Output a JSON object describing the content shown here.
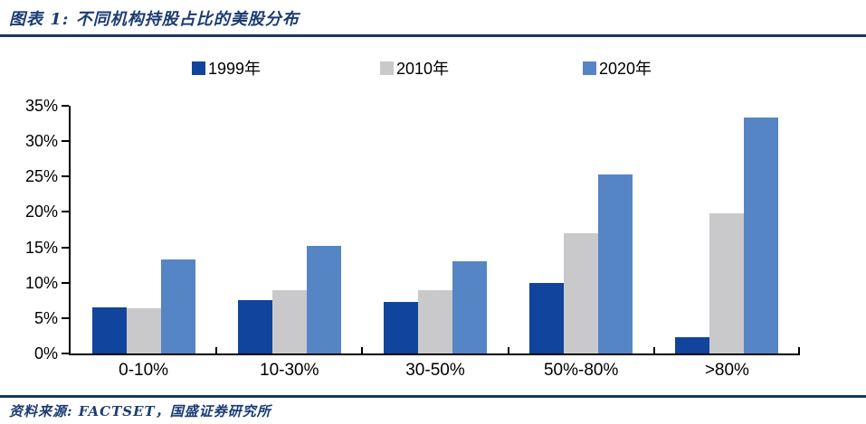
{
  "header": {
    "title": "图表 1: 不同机构持股占比的美股分布"
  },
  "footer": {
    "source": "资料来源: FACTSET，国盛证券研究所"
  },
  "colors": {
    "rule_navy": "#17375E",
    "title_navy": "#1B3C74",
    "axis_black": "#000000",
    "series_1999": "#11449C",
    "series_2010": "#C9C9CB",
    "series_2020": "#5585C5"
  },
  "chart_data": {
    "type": "bar",
    "title": "不同机构持股占比的美股分布",
    "categories": [
      "0-10%",
      "10-30%",
      "30-50%",
      "50%-80%",
      ">80%"
    ],
    "series": [
      {
        "name": "1999年",
        "color": "#11449C",
        "values": [
          6.5,
          7.5,
          7.3,
          10.0,
          2.3
        ]
      },
      {
        "name": "2010年",
        "color": "#C9C9CB",
        "values": [
          6.4,
          9.0,
          8.9,
          17.0,
          19.8
        ]
      },
      {
        "name": "2020年",
        "color": "#5585C5",
        "values": [
          13.3,
          15.2,
          13.0,
          25.3,
          33.4
        ]
      }
    ],
    "xlabel": "",
    "ylabel": "",
    "ylim": [
      0,
      35
    ],
    "ytick_step": 5,
    "ytick_labels": [
      "0%",
      "5%",
      "10%",
      "15%",
      "20%",
      "25%",
      "30%",
      "35%"
    ],
    "grid": false,
    "legend_position": "top"
  }
}
